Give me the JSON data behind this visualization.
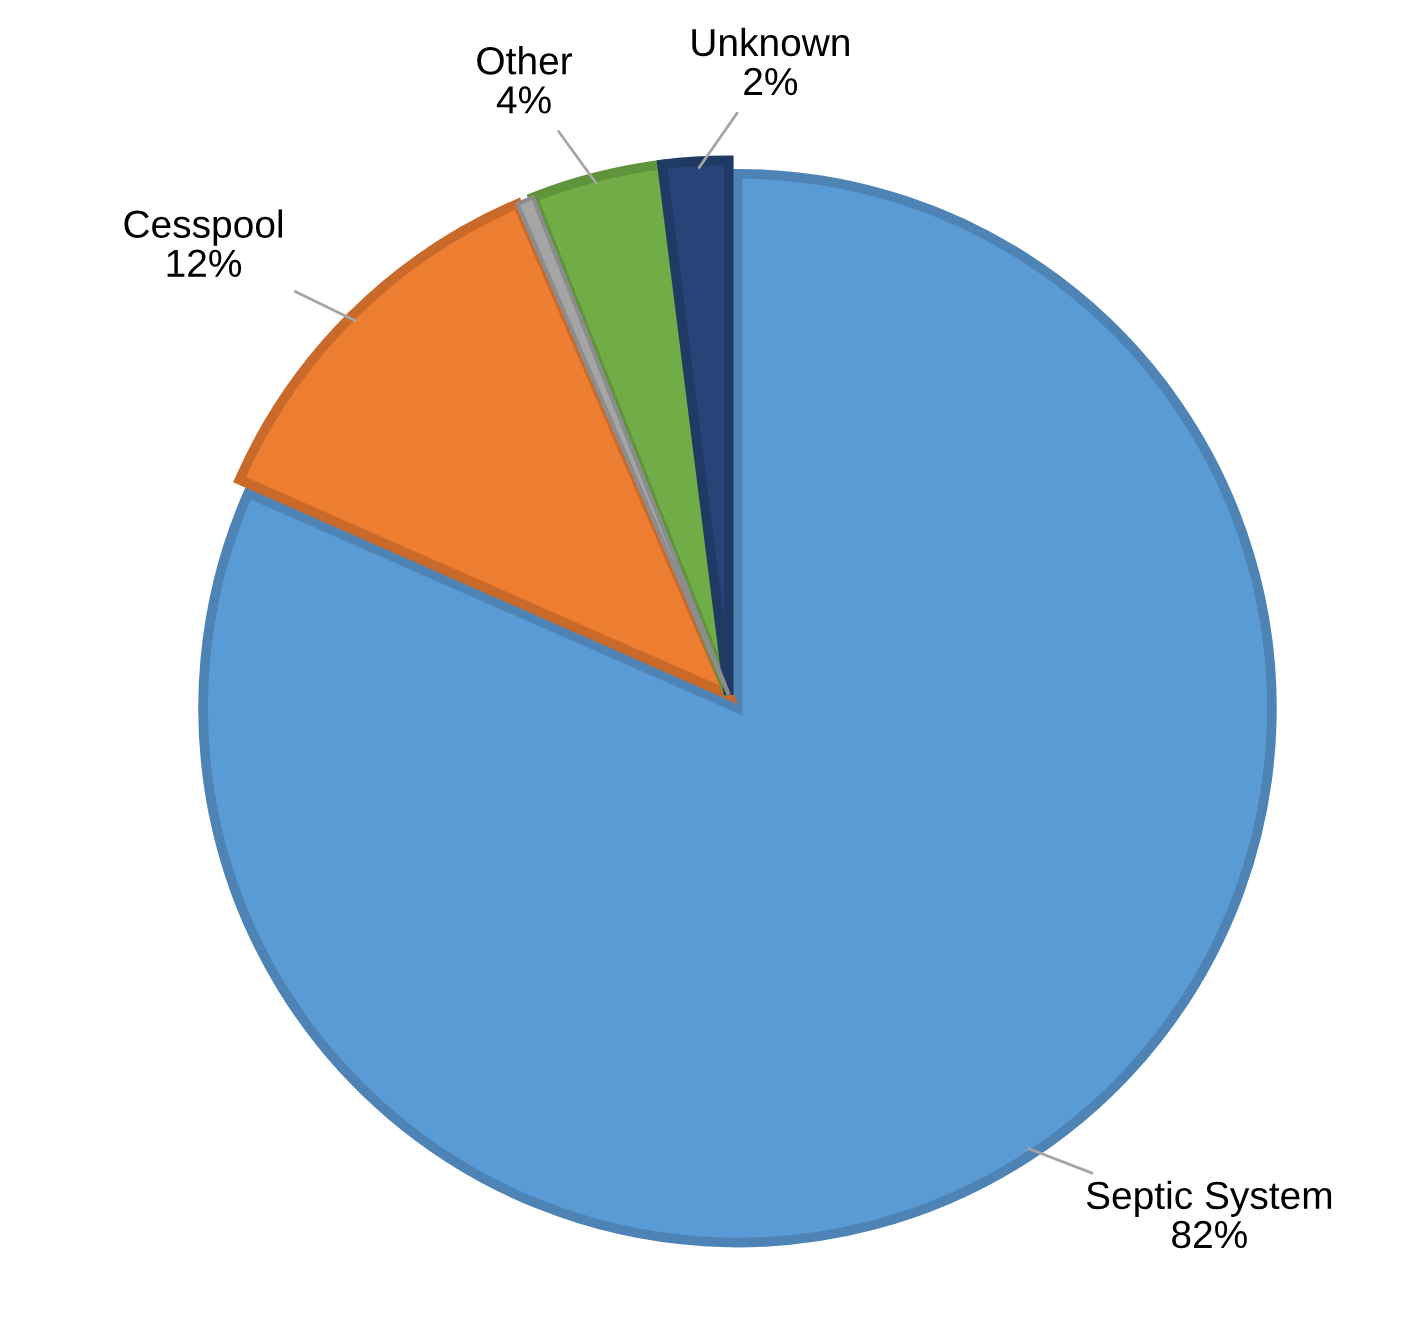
{
  "chart_data": {
    "type": "pie",
    "categories": [
      "Septic System",
      "Cesspool",
      null,
      "Other",
      "Unknown"
    ],
    "values": [
      82,
      12,
      0.5,
      4,
      2
    ],
    "colors": [
      "#5b9bd5",
      "#ed7d31",
      "#a5a5a5",
      "#70ad47",
      "#264478"
    ],
    "value_labels": [
      "82%",
      "12%",
      null,
      "4%",
      "2%"
    ],
    "legend": false
  }
}
